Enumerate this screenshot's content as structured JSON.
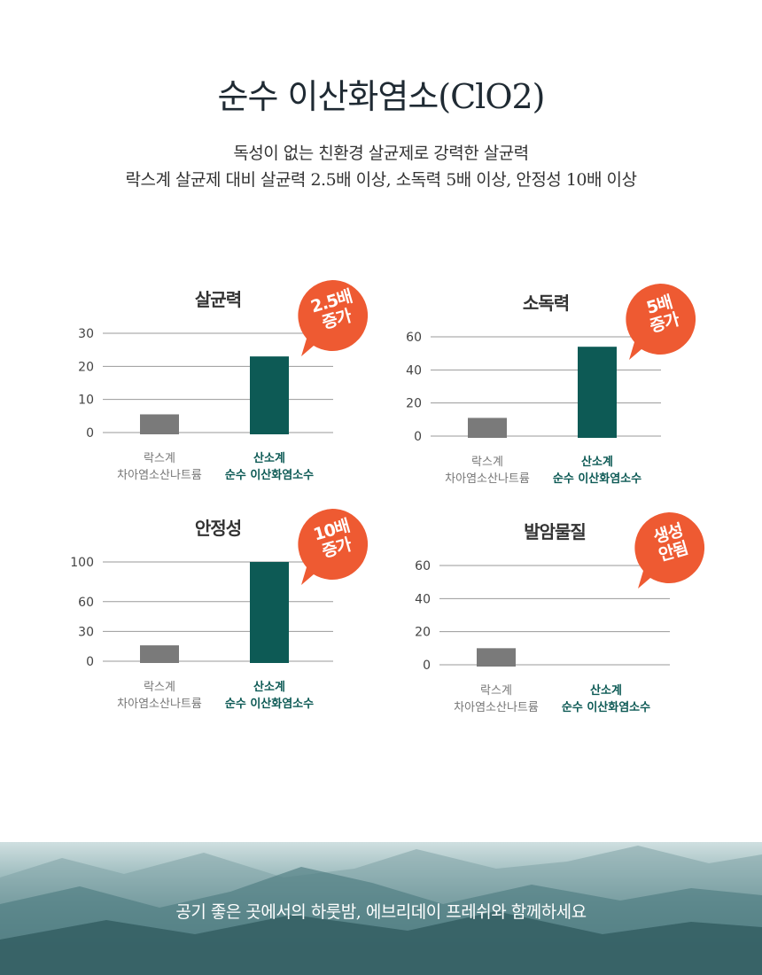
{
  "header": {
    "title": "순수 이산화염소(ClO2)",
    "subtitle_line1": "독성이 없는 친환경 살균제로 강력한 살균력",
    "subtitle_line2": "락스계 살균제 대비 살균력 2.5배 이상, 소독력 5배 이상, 안정성 10배 이상"
  },
  "colors": {
    "accent": "#0d5a55",
    "comparison": "#7a7a7a",
    "badge": "#ee5a32"
  },
  "chart_data": [
    {
      "type": "bar",
      "title": "살균력",
      "badge": [
        "2.5배",
        "증가"
      ],
      "categories": [
        [
          "락스계",
          "차아염소산나트륨"
        ],
        [
          "산소계",
          "순수 이산화염소수"
        ]
      ],
      "values": [
        5.5,
        23
      ],
      "ticks": [
        0,
        10,
        20,
        30
      ],
      "ylim": [
        0,
        30
      ],
      "grid": true
    },
    {
      "type": "bar",
      "title": "소독력",
      "badge": [
        "5배",
        "증가"
      ],
      "categories": [
        [
          "락스계",
          "차아염소산나트륨"
        ],
        [
          "산소계",
          "순수 이산화염소수"
        ]
      ],
      "values": [
        11,
        54
      ],
      "ticks": [
        0,
        20,
        40,
        60
      ],
      "ylim": [
        0,
        60
      ],
      "grid": true
    },
    {
      "type": "bar",
      "title": "안정성",
      "badge": [
        "10배",
        "증가"
      ],
      "categories": [
        [
          "락스계",
          "차아염소산나트륨"
        ],
        [
          "산소계",
          "순수 이산화염소수"
        ]
      ],
      "values": [
        16,
        100
      ],
      "ticks": [
        0,
        30,
        60,
        100
      ],
      "ylim": [
        0,
        100
      ],
      "grid": true
    },
    {
      "type": "bar",
      "title": "발암물질",
      "badge": [
        "생성",
        "안됨"
      ],
      "categories": [
        [
          "락스계",
          "차아염소산나트륨"
        ],
        [
          "산소계",
          "순수 이산화염소수"
        ]
      ],
      "values": [
        10,
        0
      ],
      "ticks": [
        0,
        20,
        40,
        60
      ],
      "ylim": [
        0,
        60
      ],
      "grid": true
    }
  ],
  "footer": {
    "text": "공기 좋은 곳에서의 하룻밤, 에브리데이 프레쉬와 함께하세요"
  }
}
